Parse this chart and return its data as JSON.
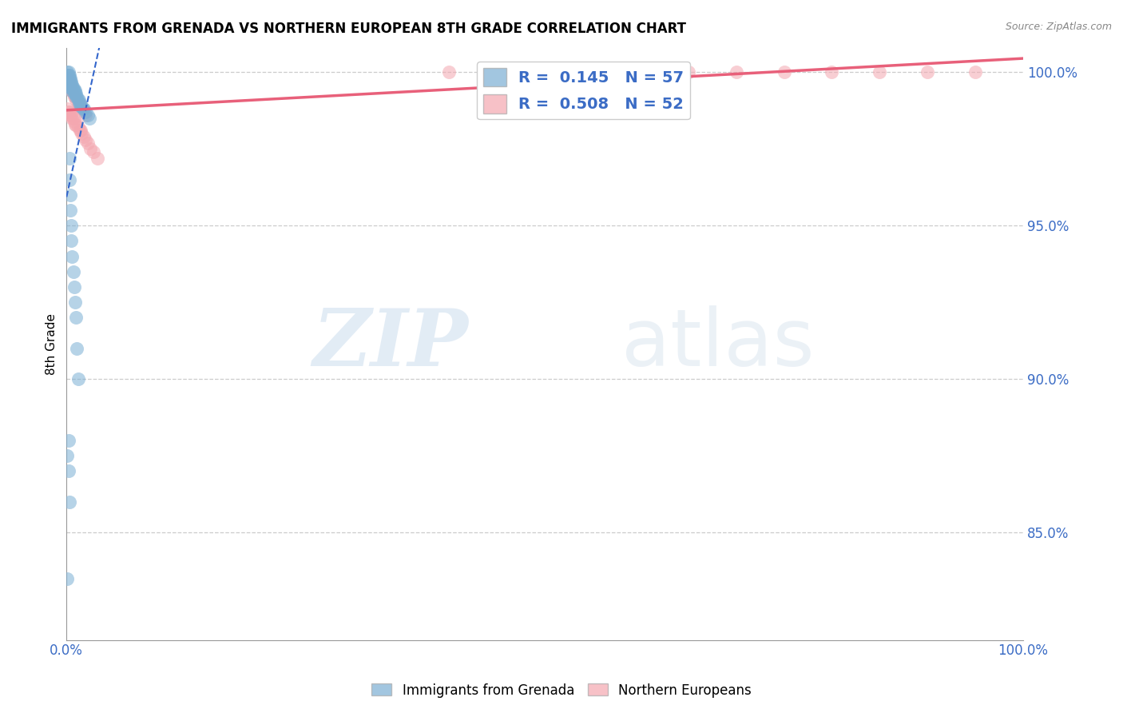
{
  "title": "IMMIGRANTS FROM GRENADA VS NORTHERN EUROPEAN 8TH GRADE CORRELATION CHART",
  "source": "Source: ZipAtlas.com",
  "ylabel": "8th Grade",
  "legend_label1": "Immigrants from Grenada",
  "legend_label2": "Northern Europeans",
  "R1": 0.145,
  "N1": 57,
  "R2": 0.508,
  "N2": 52,
  "color_blue": "#7BAFD4",
  "color_pink": "#F4A7B0",
  "trendline_blue": "#3366CC",
  "trendline_pink": "#E8607A",
  "watermark_zip": "ZIP",
  "watermark_atlas": "atlas",
  "xlim": [
    0.0,
    1.0
  ],
  "ylim": [
    0.815,
    1.008
  ],
  "ytick_vals": [
    0.85,
    0.9,
    0.95,
    1.0
  ],
  "ytick_labels": [
    "85.0%",
    "90.0%",
    "95.0%",
    "100.0%"
  ],
  "grenada_x": [
    0.001,
    0.001,
    0.001,
    0.002,
    0.002,
    0.002,
    0.003,
    0.003,
    0.003,
    0.004,
    0.004,
    0.004,
    0.004,
    0.005,
    0.005,
    0.005,
    0.005,
    0.006,
    0.006,
    0.007,
    0.007,
    0.008,
    0.008,
    0.009,
    0.009,
    0.01,
    0.01,
    0.011,
    0.012,
    0.013,
    0.013,
    0.014,
    0.015,
    0.016,
    0.017,
    0.018,
    0.02,
    0.022,
    0.024,
    0.003,
    0.003,
    0.004,
    0.004,
    0.005,
    0.005,
    0.006,
    0.007,
    0.008,
    0.009,
    0.01,
    0.011,
    0.012,
    0.002,
    0.002,
    0.003,
    0.001,
    0.001
  ],
  "grenada_y": [
    1.0,
    0.999,
    0.998,
    1.0,
    0.999,
    0.998,
    0.999,
    0.998,
    0.997,
    0.998,
    0.997,
    0.996,
    0.995,
    0.997,
    0.996,
    0.995,
    0.994,
    0.996,
    0.995,
    0.995,
    0.994,
    0.994,
    0.993,
    0.994,
    0.993,
    0.993,
    0.992,
    0.992,
    0.991,
    0.991,
    0.99,
    0.99,
    0.989,
    0.989,
    0.988,
    0.988,
    0.987,
    0.986,
    0.985,
    0.972,
    0.965,
    0.96,
    0.955,
    0.95,
    0.945,
    0.94,
    0.935,
    0.93,
    0.925,
    0.92,
    0.91,
    0.9,
    0.88,
    0.87,
    0.86,
    0.875,
    0.835
  ],
  "northern_x": [
    0.001,
    0.002,
    0.003,
    0.004,
    0.005,
    0.006,
    0.007,
    0.008,
    0.009,
    0.01,
    0.012,
    0.014,
    0.015,
    0.016,
    0.018,
    0.02,
    0.022,
    0.025,
    0.028,
    0.032,
    0.001,
    0.001,
    0.002,
    0.002,
    0.003,
    0.003,
    0.004,
    0.004,
    0.005,
    0.005,
    0.006,
    0.007,
    0.008,
    0.009,
    0.01,
    0.012,
    0.014,
    0.016,
    0.018,
    0.02,
    0.6,
    0.65,
    0.7,
    0.75,
    0.8,
    0.85,
    0.9,
    0.95,
    0.4,
    0.45,
    0.5,
    0.55
  ],
  "northern_y": [
    0.988,
    0.987,
    0.987,
    0.986,
    0.986,
    0.985,
    0.985,
    0.984,
    0.983,
    0.983,
    0.982,
    0.981,
    0.981,
    0.98,
    0.979,
    0.978,
    0.977,
    0.975,
    0.974,
    0.972,
    0.999,
    0.998,
    0.998,
    0.997,
    0.997,
    0.996,
    0.996,
    0.995,
    0.995,
    0.994,
    0.994,
    0.993,
    0.992,
    0.992,
    0.991,
    0.99,
    0.989,
    0.988,
    0.987,
    0.986,
    1.0,
    1.0,
    1.0,
    1.0,
    1.0,
    1.0,
    1.0,
    1.0,
    1.0,
    1.0,
    1.0,
    1.0
  ]
}
